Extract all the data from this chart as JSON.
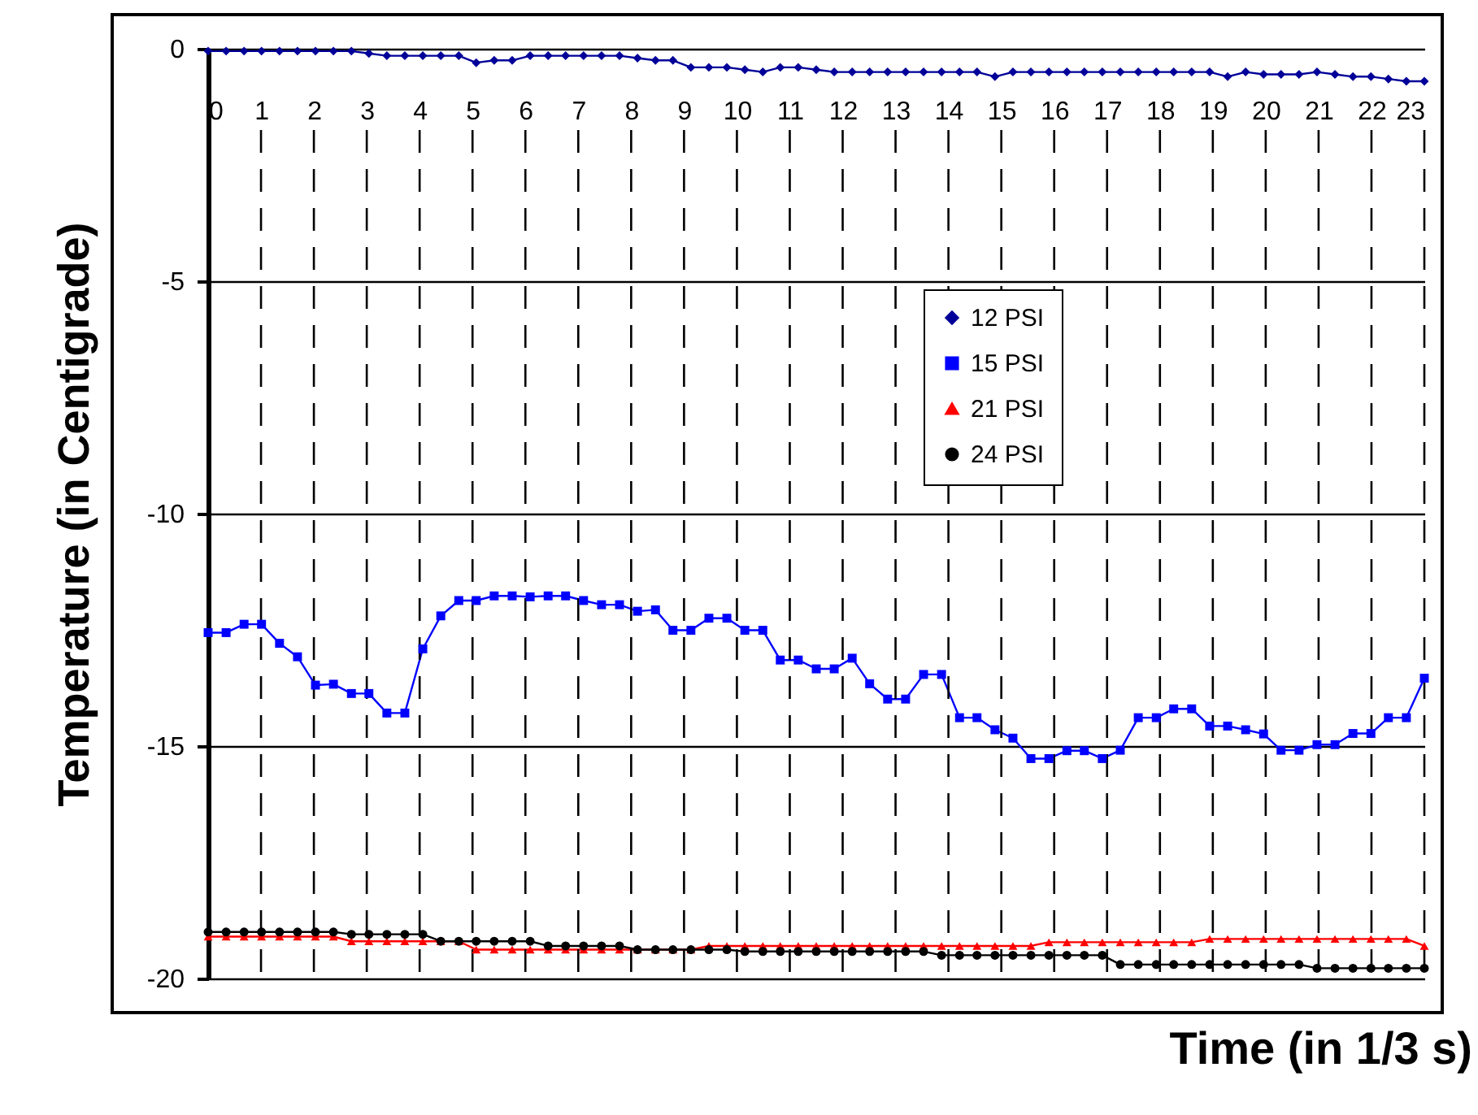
{
  "chart_data": {
    "type": "line",
    "xlabel": "Time (in 1/3 s)",
    "ylabel": "Temperature (in Centigrade)",
    "x": [
      0,
      0.34,
      0.68,
      1.01,
      1.35,
      1.69,
      2.03,
      2.37,
      2.71,
      3.04,
      3.38,
      3.72,
      4.06,
      4.4,
      4.74,
      5.07,
      5.41,
      5.75,
      6.09,
      6.43,
      6.76,
      7.1,
      7.44,
      7.78,
      8.12,
      8.46,
      8.79,
      9.13,
      9.47,
      9.81,
      10.15,
      10.49,
      10.82,
      11.16,
      11.5,
      11.84,
      12.18,
      12.51,
      12.85,
      13.19,
      13.53,
      13.87,
      14.21,
      14.54,
      14.88,
      15.22,
      15.56,
      15.9,
      16.24,
      16.57,
      16.91,
      17.25,
      17.59,
      17.93,
      18.26,
      18.6,
      18.94,
      19.28,
      19.62,
      19.96,
      20.29,
      20.63,
      20.97,
      21.31,
      21.65,
      21.99,
      22.32,
      22.66,
      23
    ],
    "series": [
      {
        "name": "12 PSI",
        "color": "#000099",
        "marker": "diamond",
        "values": [
          -0.05,
          -0.05,
          -0.05,
          -0.05,
          -0.05,
          -0.05,
          -0.05,
          -0.05,
          -0.05,
          -0.1,
          -0.15,
          -0.15,
          -0.15,
          -0.15,
          -0.15,
          -0.3,
          -0.25,
          -0.25,
          -0.15,
          -0.15,
          -0.15,
          -0.15,
          -0.15,
          -0.15,
          -0.2,
          -0.25,
          -0.25,
          -0.4,
          -0.4,
          -0.4,
          -0.45,
          -0.5,
          -0.4,
          -0.4,
          -0.45,
          -0.5,
          -0.5,
          -0.5,
          -0.5,
          -0.5,
          -0.5,
          -0.5,
          -0.5,
          -0.5,
          -0.6,
          -0.5,
          -0.5,
          -0.5,
          -0.5,
          -0.5,
          -0.5,
          -0.5,
          -0.5,
          -0.5,
          -0.5,
          -0.5,
          -0.5,
          -0.6,
          -0.5,
          -0.55,
          -0.55,
          -0.55,
          -0.5,
          -0.55,
          -0.6,
          -0.6,
          -0.65,
          -0.7,
          -0.7
        ]
      },
      {
        "name": "15 PSI",
        "color": "#0000ff",
        "marker": "square",
        "values": [
          -12.56,
          -12.56,
          -12.38,
          -12.38,
          -12.79,
          -13.08,
          -13.69,
          -13.67,
          -13.87,
          -13.87,
          -14.29,
          -14.29,
          -12.91,
          -12.2,
          -11.87,
          -11.87,
          -11.77,
          -11.77,
          -11.79,
          -11.77,
          -11.77,
          -11.87,
          -11.96,
          -11.96,
          -12.1,
          -12.07,
          -12.51,
          -12.51,
          -12.25,
          -12.25,
          -12.51,
          -12.51,
          -13.15,
          -13.15,
          -13.34,
          -13.34,
          -13.11,
          -13.66,
          -13.99,
          -13.99,
          -13.46,
          -13.46,
          -14.39,
          -14.39,
          -14.65,
          -14.83,
          -15.27,
          -15.27,
          -15.1,
          -15.1,
          -15.27,
          -15.09,
          -14.39,
          -14.39,
          -14.2,
          -14.2,
          -14.57,
          -14.57,
          -14.65,
          -14.74,
          -15.09,
          -15.09,
          -14.97,
          -14.97,
          -14.73,
          -14.73,
          -14.39,
          -14.39,
          -13.54
        ]
      },
      {
        "name": "21 PSI",
        "color": "#ff0000",
        "marker": "triangle",
        "values": [
          -19.1,
          -19.1,
          -19.1,
          -19.1,
          -19.1,
          -19.1,
          -19.1,
          -19.1,
          -19.2,
          -19.2,
          -19.2,
          -19.2,
          -19.2,
          -19.2,
          -19.2,
          -19.38,
          -19.38,
          -19.38,
          -19.38,
          -19.38,
          -19.38,
          -19.38,
          -19.38,
          -19.38,
          -19.38,
          -19.38,
          -19.38,
          -19.38,
          -19.3,
          -19.3,
          -19.3,
          -19.3,
          -19.3,
          -19.3,
          -19.3,
          -19.3,
          -19.3,
          -19.3,
          -19.3,
          -19.3,
          -19.3,
          -19.3,
          -19.3,
          -19.3,
          -19.3,
          -19.3,
          -19.3,
          -19.22,
          -19.22,
          -19.22,
          -19.22,
          -19.22,
          -19.22,
          -19.22,
          -19.22,
          -19.22,
          -19.15,
          -19.15,
          -19.15,
          -19.15,
          -19.15,
          -19.15,
          -19.15,
          -19.15,
          -19.15,
          -19.15,
          -19.15,
          -19.15,
          -19.3
        ]
      },
      {
        "name": "24 PSI",
        "color": "#000000",
        "marker": "circle",
        "values": [
          -19.0,
          -19.0,
          -19.0,
          -19.0,
          -19.0,
          -19.0,
          -19.0,
          -19.0,
          -19.05,
          -19.05,
          -19.05,
          -19.05,
          -19.05,
          -19.2,
          -19.2,
          -19.2,
          -19.2,
          -19.2,
          -19.2,
          -19.3,
          -19.3,
          -19.3,
          -19.3,
          -19.3,
          -19.38,
          -19.38,
          -19.38,
          -19.38,
          -19.38,
          -19.38,
          -19.42,
          -19.42,
          -19.42,
          -19.42,
          -19.42,
          -19.42,
          -19.42,
          -19.42,
          -19.42,
          -19.42,
          -19.42,
          -19.5,
          -19.5,
          -19.5,
          -19.5,
          -19.5,
          -19.5,
          -19.5,
          -19.5,
          -19.5,
          -19.5,
          -19.7,
          -19.7,
          -19.7,
          -19.7,
          -19.7,
          -19.7,
          -19.7,
          -19.7,
          -19.7,
          -19.7,
          -19.7,
          -19.78,
          -19.78,
          -19.78,
          -19.78,
          -19.78,
          -19.78,
          -19.78
        ]
      }
    ],
    "xlim": [
      0,
      23
    ],
    "xticks": [
      0,
      1,
      2,
      3,
      4,
      5,
      6,
      7,
      8,
      9,
      10,
      11,
      12,
      13,
      14,
      15,
      16,
      17,
      18,
      19,
      20,
      21,
      22,
      23
    ],
    "ylim": [
      -20,
      0
    ],
    "yticks": [
      0,
      -5,
      -10,
      -15,
      -20
    ],
    "grid": true,
    "legend": "top right",
    "line_style": "solid"
  }
}
